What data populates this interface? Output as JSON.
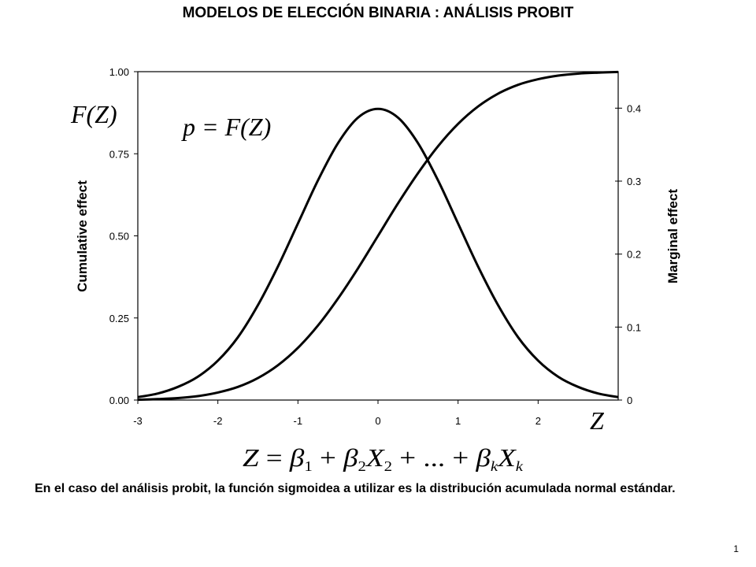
{
  "slide": {
    "title": "MODELOS DE ELECCIÓN BINARIA : ANÁLISIS PROBIT",
    "caption": "En el caso del análisis probit, la función sigmoidea a utilizar es la distribución acumulada normal estándar.",
    "page_number": "1"
  },
  "equations": {
    "p_equals_F_of_Z": "p = F(Z)",
    "z_equation_text": "Z = β1 + β2X2 + ... + βkXk"
  },
  "chart_data": {
    "type": "line",
    "title": "",
    "xlabel": "Z",
    "ylabel": "F(Z)",
    "y_axis_title": "Cumulative effect",
    "y2_axis_title": "Marginal effect",
    "xlim": [
      -3,
      3
    ],
    "ylim": [
      0,
      1
    ],
    "y2lim": [
      0,
      0.45
    ],
    "x_ticks": [
      "-3",
      "-2",
      "-1",
      "0",
      "1",
      "2"
    ],
    "y_ticks": [
      "0.00",
      "0.25",
      "0.50",
      "0.75",
      "1.00"
    ],
    "y2_ticks": [
      "0",
      "0.1",
      "0.2",
      "0.3",
      "0.4"
    ],
    "grid": false,
    "line_color": "#000000",
    "series": [
      {
        "axis": "left",
        "x": [
          -3,
          -2.75,
          -2.5,
          -2.25,
          -2,
          -1.75,
          -1.5,
          -1.25,
          -1,
          -0.75,
          -0.5,
          -0.25,
          0,
          0.25,
          0.5,
          0.75,
          1,
          1.25,
          1.5,
          1.75,
          2,
          2.25,
          2.5,
          2.75,
          3
        ],
        "values": [
          0.001,
          0.003,
          0.006,
          0.012,
          0.023,
          0.04,
          0.067,
          0.106,
          0.159,
          0.227,
          0.309,
          0.401,
          0.5,
          0.599,
          0.691,
          0.773,
          0.841,
          0.894,
          0.933,
          0.96,
          0.977,
          0.988,
          0.994,
          0.997,
          0.999
        ]
      },
      {
        "axis": "right",
        "x": [
          -3,
          -2.75,
          -2.5,
          -2.25,
          -2,
          -1.75,
          -1.5,
          -1.25,
          -1,
          -0.75,
          -0.5,
          -0.25,
          0,
          0.25,
          0.5,
          0.75,
          1,
          1.25,
          1.5,
          1.75,
          2,
          2.25,
          2.5,
          2.75,
          3
        ],
        "values": [
          0.004,
          0.009,
          0.018,
          0.032,
          0.054,
          0.086,
          0.13,
          0.183,
          0.242,
          0.301,
          0.352,
          0.387,
          0.399,
          0.387,
          0.352,
          0.301,
          0.242,
          0.183,
          0.13,
          0.086,
          0.054,
          0.032,
          0.018,
          0.009,
          0.004
        ]
      }
    ]
  }
}
